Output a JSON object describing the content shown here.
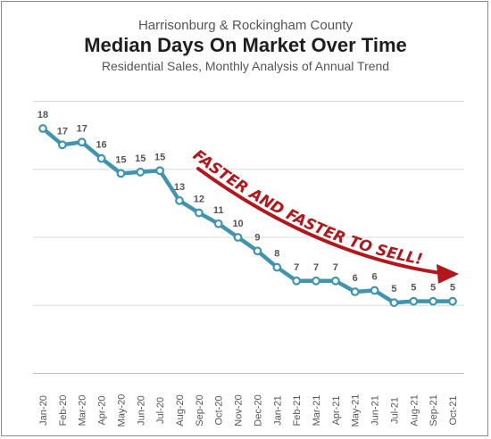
{
  "header": {
    "supertitle": "Harrisonburg & Rockingham County",
    "title": "Median Days On Market Over Time",
    "subtitle": "Residential Sales, Monthly Analysis of Annual Trend"
  },
  "annotation": {
    "text": "FASTER AND FASTER TO SELL!",
    "color": "#b3171b",
    "icon": "arrow-right-icon"
  },
  "colors": {
    "line": "#3e95ad",
    "marker_fill": "#ffffff",
    "grid": "#d9d9d9",
    "label": "#555555"
  },
  "chart_data": {
    "type": "line",
    "title": "Median Days On Market Over Time",
    "xlabel": "",
    "ylabel": "",
    "ylim": [
      0,
      18
    ],
    "grid": true,
    "categories": [
      "Jan-20",
      "Feb-20",
      "Mar-20",
      "Apr-20",
      "May-20",
      "Jun-20",
      "Jul-20",
      "Aug-20",
      "Sep-20",
      "Oct-20",
      "Nov-20",
      "Dec-20",
      "Jan-21",
      "Feb-21",
      "Mar-21",
      "Apr-21",
      "May-21",
      "Jun-21",
      "Jul-21",
      "Aug-21",
      "Sep-21",
      "Oct-21"
    ],
    "values": [
      18,
      17,
      17,
      16,
      15,
      15,
      15,
      13,
      12,
      11,
      10,
      9,
      8,
      7,
      7,
      7,
      6,
      6,
      5,
      5,
      5,
      5
    ],
    "values_precise": [
      18,
      16.8,
      17.0,
      15.8,
      14.7,
      14.8,
      14.9,
      12.7,
      11.8,
      11.0,
      10.0,
      9.0,
      7.8,
      6.8,
      6.8,
      6.8,
      6.0,
      6.1,
      5.2,
      5.3,
      5.3,
      5.3
    ],
    "data_labels": [
      "18",
      "17",
      "17",
      "16",
      "15",
      "15",
      "15",
      "13",
      "12",
      "11",
      "10",
      "9",
      "8",
      "7",
      "7",
      "7",
      "6",
      "6",
      "5",
      "5",
      "5",
      "5"
    ]
  }
}
